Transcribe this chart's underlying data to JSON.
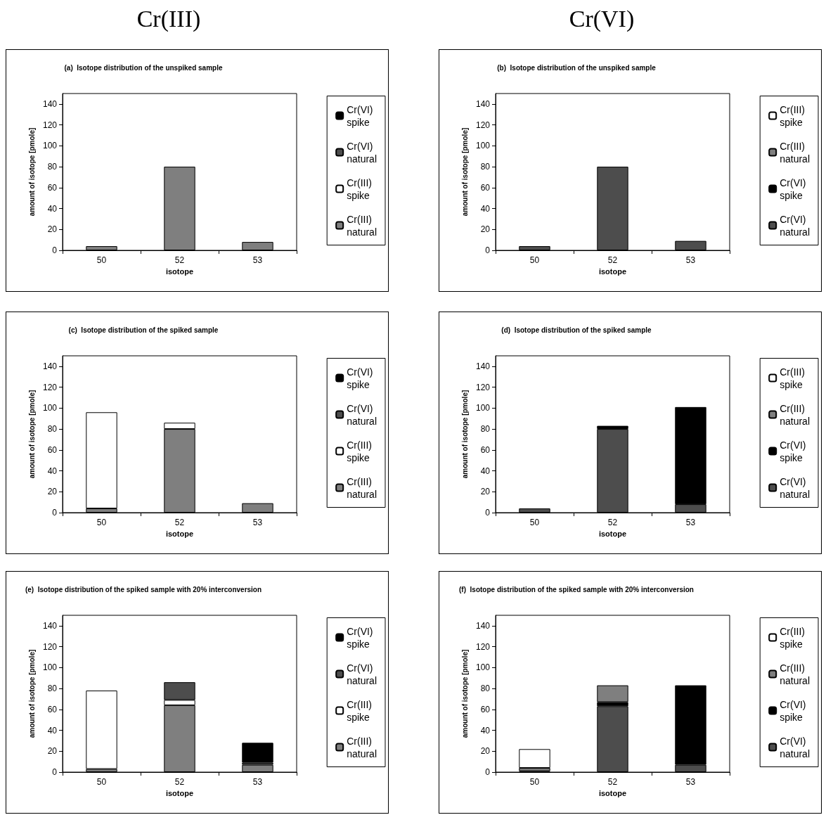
{
  "chart_data": [
    {
      "type": "bar",
      "title": "(a)  Isotope distribution of the unspiked sample",
      "annotations": [
        "Cr(III)"
      ],
      "xlabel": "isotope",
      "ylabel": "amount of isotope [pmole]",
      "categories": [
        "50",
        "52",
        "53"
      ],
      "stacked": true,
      "ylim": [
        0,
        150
      ],
      "yticks": [
        0,
        20,
        40,
        60,
        80,
        100,
        120,
        140
      ],
      "grid": false,
      "legend": "right",
      "series": [
        {
          "name": "Cr(III) natural",
          "color": "#7f7f7f",
          "values": [
            4,
            80,
            8
          ]
        },
        {
          "name": "Cr(III) spike",
          "color": "#ffffff",
          "values": [
            null,
            null,
            null
          ]
        },
        {
          "name": "Cr(VI) natural",
          "color": "#4d4d4d",
          "values": [
            null,
            null,
            null
          ]
        },
        {
          "name": "Cr(VI) spike",
          "color": "#000000",
          "values": [
            null,
            null,
            null
          ]
        }
      ]
    },
    {
      "type": "bar",
      "title": "(b)  Isotope distribution of the unspiked sample",
      "annotations": [
        "Cr(VI)"
      ],
      "xlabel": "isotope",
      "ylabel": "amount of isotope [pmole]",
      "categories": [
        "50",
        "52",
        "53"
      ],
      "stacked": true,
      "ylim": [
        0,
        150
      ],
      "yticks": [
        0,
        20,
        40,
        60,
        80,
        100,
        120,
        140
      ],
      "grid": false,
      "legend": "right",
      "series": [
        {
          "name": "Cr(VI) natural",
          "color": "#4d4d4d",
          "values": [
            4,
            80,
            9
          ]
        },
        {
          "name": "Cr(VI) spike",
          "color": "#000000",
          "values": [
            null,
            null,
            null
          ]
        },
        {
          "name": "Cr(III) natural",
          "color": "#7f7f7f",
          "values": [
            null,
            null,
            null
          ]
        },
        {
          "name": "Cr(III) spike",
          "color": "#ffffff",
          "values": [
            null,
            null,
            null
          ]
        }
      ]
    },
    {
      "type": "bar",
      "title": "(c)  Isotope distribution of the spiked sample",
      "xlabel": "isotope",
      "ylabel": "amount of isotope [pmole]",
      "categories": [
        "50",
        "52",
        "53"
      ],
      "stacked": true,
      "ylim": [
        0,
        150
      ],
      "yticks": [
        0,
        20,
        40,
        60,
        80,
        100,
        120,
        140
      ],
      "grid": false,
      "legend": "right",
      "series": [
        {
          "name": "Cr(III) natural",
          "color": "#7f7f7f",
          "values": [
            4,
            80,
            9
          ]
        },
        {
          "name": "Cr(III) spike",
          "color": "#ffffff",
          "values": [
            92,
            6,
            null
          ]
        },
        {
          "name": "Cr(VI) natural",
          "color": "#4d4d4d",
          "values": [
            null,
            null,
            null
          ]
        },
        {
          "name": "Cr(VI) spike",
          "color": "#000000",
          "values": [
            null,
            null,
            null
          ]
        }
      ]
    },
    {
      "type": "bar",
      "title": "(d)  Isotope distribution of the spiked sample",
      "xlabel": "isotope",
      "ylabel": "amount of isotope [pmole]",
      "categories": [
        "50",
        "52",
        "53"
      ],
      "stacked": true,
      "ylim": [
        0,
        150
      ],
      "yticks": [
        0,
        20,
        40,
        60,
        80,
        100,
        120,
        140
      ],
      "grid": false,
      "legend": "right",
      "series": [
        {
          "name": "Cr(VI) natural",
          "color": "#4d4d4d",
          "values": [
            4,
            80,
            8
          ]
        },
        {
          "name": "Cr(VI) spike",
          "color": "#000000",
          "values": [
            null,
            3,
            93
          ]
        },
        {
          "name": "Cr(III) natural",
          "color": "#7f7f7f",
          "values": [
            null,
            null,
            null
          ]
        },
        {
          "name": "Cr(III) spike",
          "color": "#ffffff",
          "values": [
            null,
            null,
            null
          ]
        }
      ]
    },
    {
      "type": "bar",
      "title": "(e)  Isotope distribution of the spiked sample with 20% interconversion",
      "xlabel": "isotope",
      "ylabel": "amount of isotope [pmole]",
      "categories": [
        "50",
        "52",
        "53"
      ],
      "stacked": true,
      "ylim": [
        0,
        150
      ],
      "yticks": [
        0,
        20,
        40,
        60,
        80,
        100,
        120,
        140
      ],
      "grid": false,
      "legend": "right",
      "series": [
        {
          "name": "Cr(III) natural",
          "color": "#7f7f7f",
          "values": [
            3,
            64,
            7
          ]
        },
        {
          "name": "Cr(III) spike",
          "color": "#ffffff",
          "values": [
            75,
            5,
            null
          ]
        },
        {
          "name": "Cr(VI) natural",
          "color": "#4d4d4d",
          "values": [
            null,
            17,
            2
          ]
        },
        {
          "name": "Cr(VI) spike",
          "color": "#000000",
          "values": [
            null,
            null,
            19
          ]
        }
      ]
    },
    {
      "type": "bar",
      "title": "(f)  Isotope distribution of the spiked sample with 20% interconversion",
      "xlabel": "isotope",
      "ylabel": "amount of isotope [pmole]",
      "categories": [
        "50",
        "52",
        "53"
      ],
      "stacked": true,
      "ylim": [
        0,
        150
      ],
      "yticks": [
        0,
        20,
        40,
        60,
        80,
        100,
        120,
        140
      ],
      "grid": false,
      "legend": "right",
      "series": [
        {
          "name": "Cr(VI) natural",
          "color": "#4d4d4d",
          "values": [
            1,
            63,
            7
          ]
        },
        {
          "name": "Cr(VI) spike",
          "color": "#000000",
          "values": [
            null,
            4,
            76
          ]
        },
        {
          "name": "Cr(III) natural",
          "color": "#7f7f7f",
          "values": [
            3,
            16,
            null
          ]
        },
        {
          "name": "Cr(III) spike",
          "color": "#ffffff",
          "values": [
            18,
            null,
            null
          ]
        }
      ]
    }
  ]
}
